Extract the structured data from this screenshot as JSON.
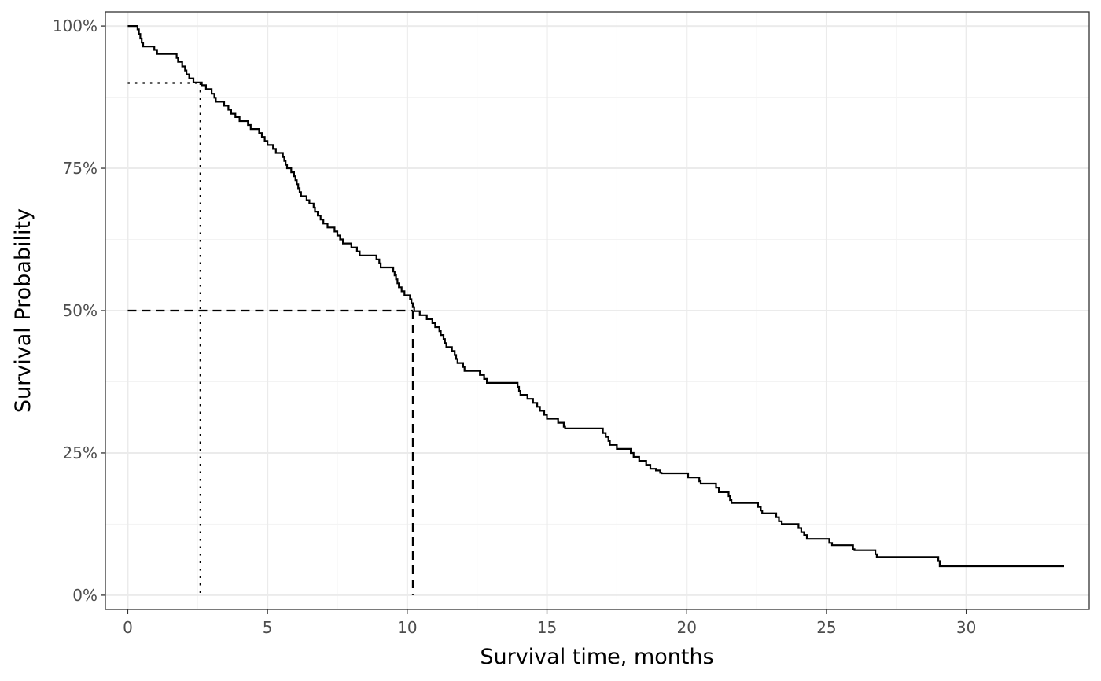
{
  "chart_data": {
    "type": "line",
    "subtype": "kaplan-meier step curve",
    "xlabel": "Survival time, months",
    "ylabel": "Survival Probability",
    "xlim": [
      -0.8,
      34.4
    ],
    "ylim": [
      -2.5,
      102.5
    ],
    "x_ticks": [
      0,
      5,
      10,
      15,
      20,
      25,
      30
    ],
    "x_tick_labels": [
      "0",
      "5",
      "10",
      "15",
      "20",
      "25",
      "30"
    ],
    "y_ticks": [
      0,
      25,
      50,
      75,
      100
    ],
    "y_tick_labels": [
      "0%",
      "25%",
      "50%",
      "75%",
      "100%"
    ],
    "grid": true,
    "legend": "none",
    "colors": {
      "curve": "#000000",
      "grid_major": "#ebebeb",
      "grid_minor": "#f3f3f3",
      "panel_border": "#333333",
      "tick_label": "#4d4d4d"
    },
    "series": [
      {
        "steps": [
          [
            0,
            100
          ],
          [
            0.35,
            99.4
          ],
          [
            0.4,
            98.6
          ],
          [
            0.45,
            97.8
          ],
          [
            0.5,
            97.1
          ],
          [
            0.55,
            96.4
          ],
          [
            0.95,
            95.8
          ],
          [
            1.05,
            95.1
          ],
          [
            1.75,
            94.4
          ],
          [
            1.8,
            93.7
          ],
          [
            1.95,
            92.9
          ],
          [
            2.05,
            92.2
          ],
          [
            2.1,
            91.5
          ],
          [
            2.2,
            90.8
          ],
          [
            2.35,
            90.1
          ],
          [
            2.65,
            89.6
          ],
          [
            2.8,
            88.9
          ],
          [
            3.0,
            88.1
          ],
          [
            3.1,
            87.4
          ],
          [
            3.15,
            86.7
          ],
          [
            3.45,
            86.0
          ],
          [
            3.6,
            85.3
          ],
          [
            3.7,
            84.6
          ],
          [
            3.85,
            84.0
          ],
          [
            4.0,
            83.3
          ],
          [
            4.3,
            82.6
          ],
          [
            4.4,
            81.9
          ],
          [
            4.7,
            81.2
          ],
          [
            4.8,
            80.5
          ],
          [
            4.9,
            79.8
          ],
          [
            5.0,
            79.1
          ],
          [
            5.2,
            78.4
          ],
          [
            5.3,
            77.7
          ],
          [
            5.55,
            77.0
          ],
          [
            5.6,
            76.3
          ],
          [
            5.65,
            75.6
          ],
          [
            5.7,
            75.0
          ],
          [
            5.85,
            74.3
          ],
          [
            5.95,
            73.6
          ],
          [
            6.0,
            72.9
          ],
          [
            6.05,
            72.2
          ],
          [
            6.1,
            71.5
          ],
          [
            6.15,
            70.8
          ],
          [
            6.2,
            70.1
          ],
          [
            6.4,
            69.4
          ],
          [
            6.5,
            68.8
          ],
          [
            6.65,
            68.1
          ],
          [
            6.7,
            67.4
          ],
          [
            6.8,
            66.7
          ],
          [
            6.9,
            66.0
          ],
          [
            7.0,
            65.3
          ],
          [
            7.15,
            64.6
          ],
          [
            7.4,
            63.9
          ],
          [
            7.5,
            63.2
          ],
          [
            7.6,
            62.5
          ],
          [
            7.7,
            61.8
          ],
          [
            8.0,
            61.1
          ],
          [
            8.2,
            60.4
          ],
          [
            8.3,
            59.7
          ],
          [
            8.9,
            59.0
          ],
          [
            9.0,
            58.3
          ],
          [
            9.05,
            57.6
          ],
          [
            9.5,
            56.9
          ],
          [
            9.55,
            56.2
          ],
          [
            9.6,
            55.5
          ],
          [
            9.65,
            54.8
          ],
          [
            9.7,
            54.1
          ],
          [
            9.8,
            53.4
          ],
          [
            9.9,
            52.7
          ],
          [
            10.1,
            52.0
          ],
          [
            10.15,
            51.3
          ],
          [
            10.2,
            50.6
          ],
          [
            10.25,
            49.9
          ],
          [
            10.45,
            49.2
          ],
          [
            10.7,
            48.5
          ],
          [
            10.9,
            47.8
          ],
          [
            11.0,
            47.1
          ],
          [
            11.15,
            46.4
          ],
          [
            11.2,
            45.7
          ],
          [
            11.3,
            45.0
          ],
          [
            11.35,
            44.3
          ],
          [
            11.4,
            43.6
          ],
          [
            11.6,
            42.9
          ],
          [
            11.7,
            42.2
          ],
          [
            11.75,
            41.5
          ],
          [
            11.8,
            40.8
          ],
          [
            12.0,
            40.1
          ],
          [
            12.05,
            39.4
          ],
          [
            12.6,
            38.7
          ],
          [
            12.75,
            38.0
          ],
          [
            12.85,
            37.3
          ],
          [
            13.95,
            36.6
          ],
          [
            14.0,
            35.9
          ],
          [
            14.05,
            35.2
          ],
          [
            14.3,
            34.5
          ],
          [
            14.5,
            33.8
          ],
          [
            14.65,
            33.1
          ],
          [
            14.75,
            32.4
          ],
          [
            14.9,
            31.7
          ],
          [
            15.0,
            31.0
          ],
          [
            15.4,
            30.3
          ],
          [
            15.6,
            29.6
          ],
          [
            15.65,
            29.3
          ],
          [
            17.0,
            28.5
          ],
          [
            17.1,
            27.8
          ],
          [
            17.2,
            27.1
          ],
          [
            17.25,
            26.4
          ],
          [
            17.5,
            25.7
          ],
          [
            18.0,
            25.0
          ],
          [
            18.1,
            24.3
          ],
          [
            18.3,
            23.6
          ],
          [
            18.55,
            22.9
          ],
          [
            18.7,
            22.2
          ],
          [
            18.9,
            21.9
          ],
          [
            19.05,
            21.5
          ],
          [
            19.1,
            21.4
          ],
          [
            20.05,
            20.7
          ],
          [
            20.45,
            20.0
          ],
          [
            20.5,
            19.6
          ],
          [
            21.05,
            18.9
          ],
          [
            21.15,
            18.1
          ],
          [
            21.5,
            17.4
          ],
          [
            21.55,
            16.7
          ],
          [
            21.6,
            16.2
          ],
          [
            22.55,
            15.5
          ],
          [
            22.65,
            14.9
          ],
          [
            22.7,
            14.4
          ],
          [
            23.2,
            13.7
          ],
          [
            23.3,
            13.0
          ],
          [
            23.4,
            12.5
          ],
          [
            24.0,
            11.8
          ],
          [
            24.1,
            11.1
          ],
          [
            24.2,
            10.6
          ],
          [
            24.3,
            9.9
          ],
          [
            25.1,
            9.2
          ],
          [
            25.2,
            8.8
          ],
          [
            25.95,
            8.1
          ],
          [
            26.0,
            7.9
          ],
          [
            26.75,
            7.2
          ],
          [
            26.8,
            6.7
          ],
          [
            29.0,
            6.0
          ],
          [
            29.05,
            5.1
          ],
          [
            33.5,
            5.1
          ]
        ]
      }
    ],
    "reference_lines": [
      {
        "style": "dotted",
        "y": 90,
        "x": 2.6
      },
      {
        "style": "dashed",
        "y": 50,
        "x": 10.2
      }
    ]
  }
}
